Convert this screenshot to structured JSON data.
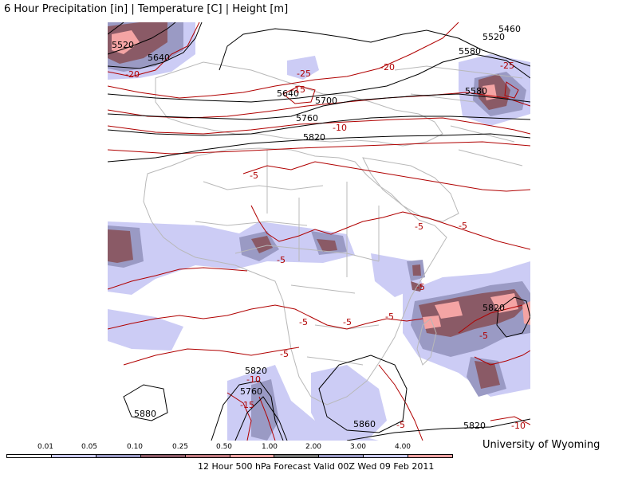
{
  "header": {
    "title": "6 Hour Precipitation [in] | Temperature [C] | Height [m]"
  },
  "footer": {
    "credit": "University of Wyoming",
    "caption": "12 Hour 500 hPa Forecast Valid 00Z Wed 09 Feb 2011"
  },
  "legend": {
    "ticks": [
      "0.01",
      "0.05",
      "0.10",
      "0.25",
      "0.50",
      "1.00",
      "2.00",
      "3.00",
      "4.00"
    ],
    "colors": [
      "#ffffff",
      "#ccccf5",
      "#9a9ac4",
      "#8a5a66",
      "#c07a80",
      "#f4a4a4",
      "#888888",
      "#a8a8d8",
      "#f0b0b0"
    ]
  },
  "colors": {
    "light_precip": "#ccccf5",
    "mid_precip": "#9a9ac4",
    "heavy_precip": "#8a5a66",
    "very_heavy_precip": "#f4a4a4",
    "temperature": "#b00000",
    "height": "#000000",
    "borders": "#b8b8b8"
  },
  "height_labels": [
    "5520",
    "5460",
    "5520",
    "5580",
    "5640",
    "5580",
    "5640",
    "5700",
    "5760",
    "5820",
    "5820",
    "5820",
    "5760",
    "5880",
    "5860",
    "5820"
  ],
  "temp_labels": [
    "-20",
    "-25",
    "-20",
    "-15",
    "-10",
    "-25",
    "-5",
    "-5",
    "-5",
    "-5",
    "-5",
    "-5",
    "-5",
    "-5",
    "-5",
    "-10",
    "-15",
    "-5",
    "-10",
    "-5"
  ]
}
